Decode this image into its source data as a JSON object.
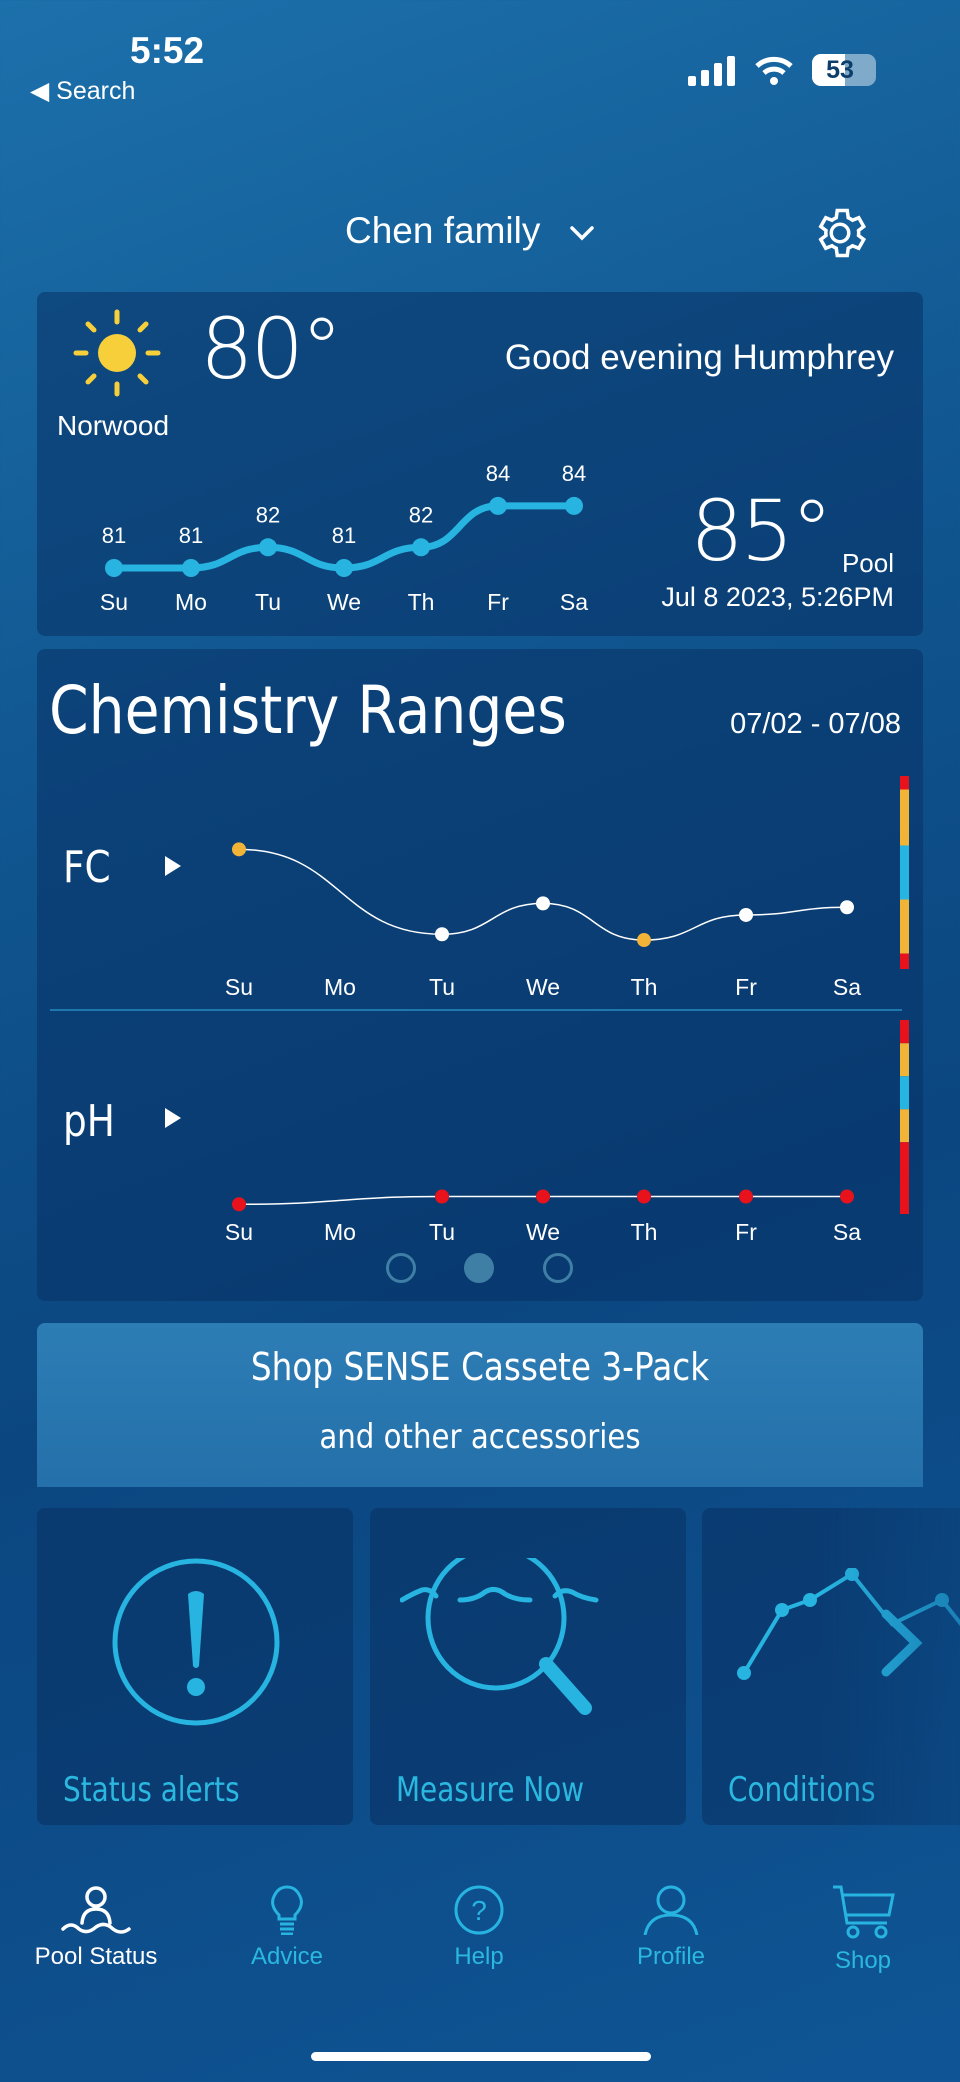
{
  "status_bar": {
    "time": "5:52",
    "back_label": "◀ Search",
    "battery": "53"
  },
  "header": {
    "account": "Chen family",
    "settings_icon": "gear-icon"
  },
  "weather": {
    "icon": "sun-icon",
    "temp": "80°",
    "location": "Norwood",
    "greeting": "Good evening Humphrey",
    "pool_temp": "85°",
    "pool_label": "Pool",
    "timestamp": "Jul 8 2023, 5:26PM"
  },
  "chart_data": [
    {
      "type": "line",
      "title": "",
      "days": [
        "Su",
        "Mo",
        "Tu",
        "We",
        "Th",
        "Fr",
        "Sa"
      ],
      "values": [
        81,
        81,
        82,
        81,
        82,
        84,
        84
      ],
      "color": "#27b4e0"
    },
    {
      "type": "line",
      "title": "Chemistry Ranges",
      "date_range": "07/02 - 07/08",
      "days": [
        "Su",
        "Mo",
        "Tu",
        "We",
        "Th",
        "Fr",
        "Sa"
      ],
      "range_colors": {
        "red": "#e8121c",
        "yellow": "#f2b437",
        "blue": "#27b4e0"
      },
      "series": [
        {
          "name": "FC",
          "levels": [
            0.62,
            null,
            0.18,
            0.34,
            0.15,
            0.28,
            0.32
          ],
          "point_colors": [
            "#f2b437",
            null,
            "#ffffff",
            "#ffffff",
            "#f2b437",
            "#ffffff",
            "#ffffff"
          ]
        },
        {
          "name": "pH",
          "levels": [
            0.05,
            null,
            0.09,
            0.09,
            0.09,
            0.09,
            0.09
          ],
          "point_colors": [
            "#e8121c",
            null,
            "#e8121c",
            "#e8121c",
            "#e8121c",
            "#e8121c",
            "#e8121c"
          ]
        }
      ]
    }
  ],
  "chemistry": {
    "title": "Chemistry Ranges",
    "date_range": "07/02 - 07/08",
    "fc_label": "FC",
    "ph_label": "pH",
    "page_index": 2,
    "page_count": 3
  },
  "banner": {
    "line1": "Shop SENSE Cassete 3-Pack",
    "line2": "and other accessories"
  },
  "tiles": [
    {
      "label": "Status alerts"
    },
    {
      "label": "Measure Now"
    },
    {
      "label": "Conditions"
    }
  ],
  "nav": [
    {
      "label": "Pool Status",
      "active": true
    },
    {
      "label": "Advice"
    },
    {
      "label": "Help"
    },
    {
      "label": "Profile"
    },
    {
      "label": "Shop"
    }
  ]
}
